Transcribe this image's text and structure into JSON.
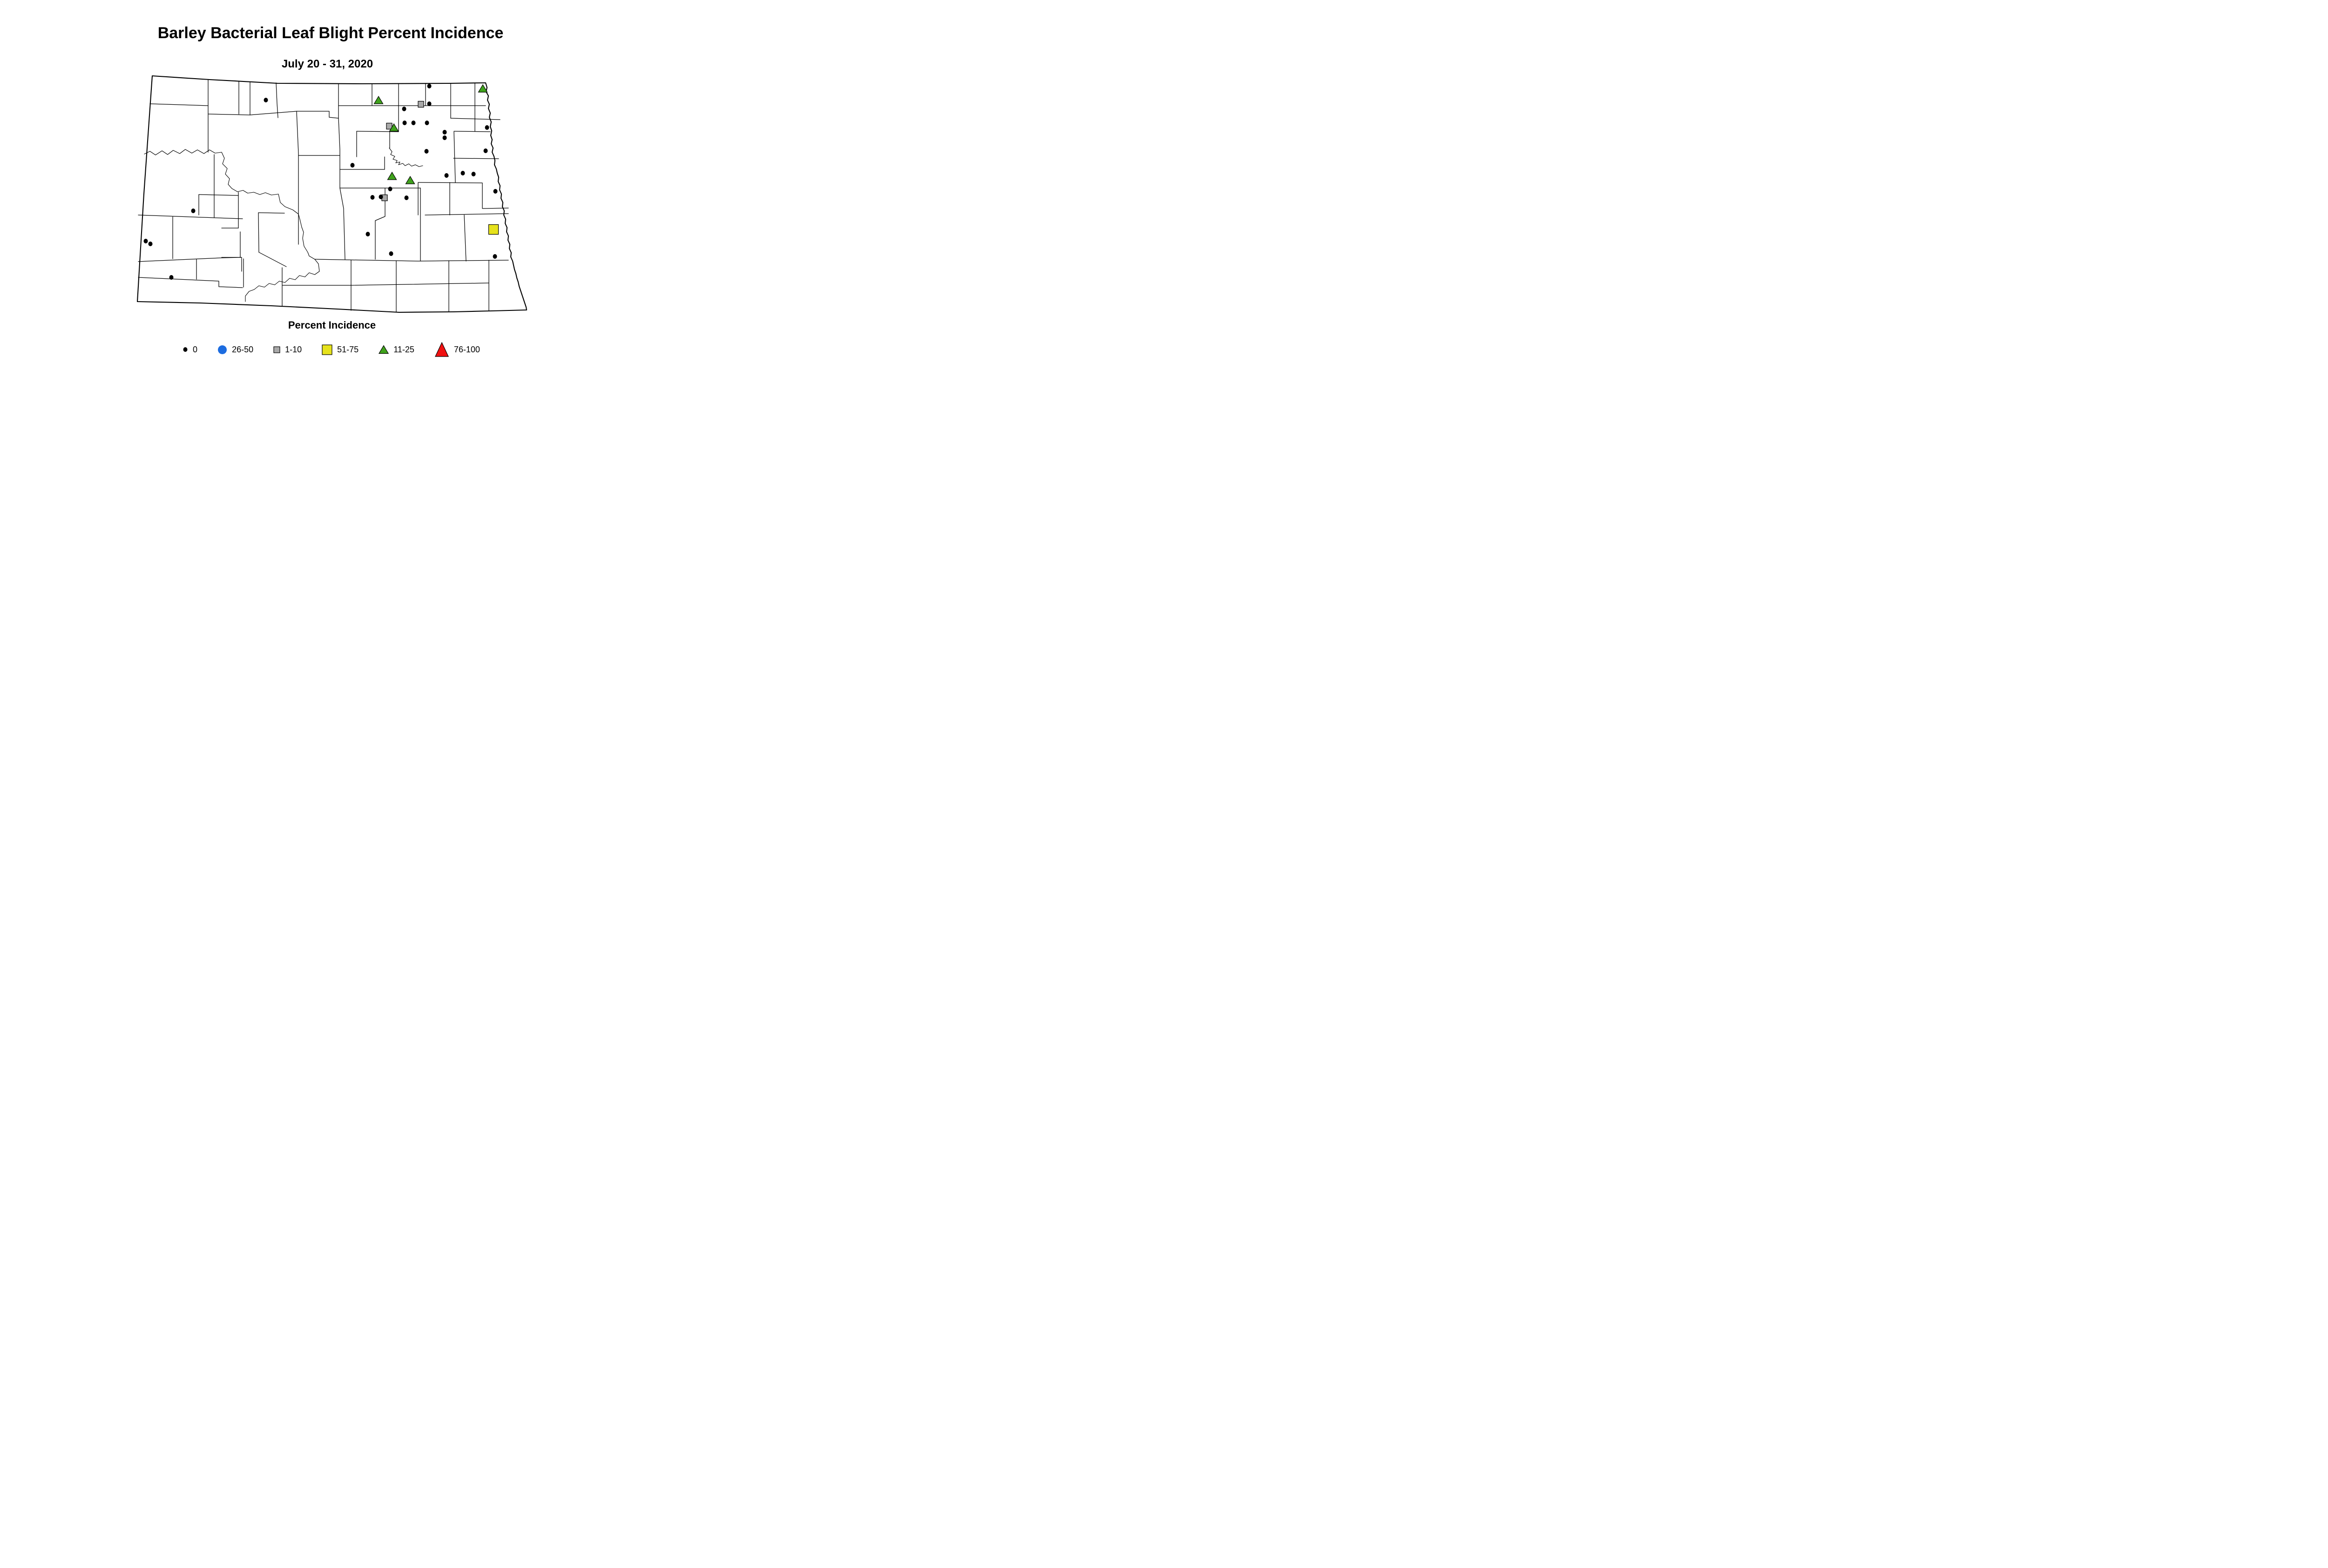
{
  "title": "Barley Bacterial Leaf Blight Percent Incidence",
  "subtitle": "July 20 - 31, 2020",
  "legend": {
    "title": "Percent Incidence",
    "items": [
      {
        "label": "0",
        "shape": "dot",
        "color": "#000000",
        "size": [
          9,
          10
        ]
      },
      {
        "label": "26-50",
        "shape": "circle",
        "color": "#1c6ce0",
        "size": [
          19,
          19
        ]
      },
      {
        "label": "1-10",
        "shape": "square",
        "color": "#a9a9a9",
        "size": [
          13,
          13
        ]
      },
      {
        "label": "51-75",
        "shape": "square",
        "color": "#e6e21c",
        "size": [
          21,
          21
        ]
      },
      {
        "label": "11-25",
        "shape": "triangle",
        "color": "#3fa21c",
        "size": [
          20,
          17
        ]
      },
      {
        "label": "76-100",
        "shape": "triangle",
        "color": "#f01111",
        "size": [
          28,
          30
        ]
      }
    ]
  },
  "map": {
    "marker_series": [
      {
        "category": "1-10",
        "shape": "square",
        "color": "#a9a9a9",
        "size": [
          12,
          13
        ],
        "points": [
          [
            904,
            224
          ],
          [
            836,
            271
          ],
          [
            826,
            425
          ]
        ]
      },
      {
        "category": "11-25",
        "shape": "triangle",
        "color": "#3fa21c",
        "size": [
          19,
          16
        ],
        "points": [
          [
            813,
            215
          ],
          [
            1037,
            190
          ],
          [
            846,
            274
          ],
          [
            842,
            378
          ],
          [
            881,
            387
          ]
        ]
      },
      {
        "category": "26-50",
        "shape": "circle",
        "color": "#1c6ce0",
        "size": [
          19,
          19
        ],
        "points": []
      },
      {
        "category": "51-75",
        "shape": "square",
        "color": "#e6e21c",
        "size": [
          21,
          21
        ],
        "points": [
          [
            1060,
            493
          ]
        ]
      },
      {
        "category": "76-100",
        "shape": "triangle",
        "color": "#f01111",
        "size": [
          28,
          30
        ],
        "points": []
      },
      {
        "category": "0",
        "shape": "dot",
        "color": "#000000",
        "size": [
          9,
          10
        ],
        "points": [
          [
            571,
            215
          ],
          [
            922,
            185
          ],
          [
            922,
            223
          ],
          [
            868,
            234
          ],
          [
            869,
            264
          ],
          [
            888,
            264
          ],
          [
            917,
            264
          ],
          [
            1046,
            274
          ],
          [
            955,
            284
          ],
          [
            955,
            296
          ],
          [
            916,
            325
          ],
          [
            1043,
            324
          ],
          [
            757,
            355
          ],
          [
            994,
            372
          ],
          [
            1017,
            374
          ],
          [
            959,
            377
          ],
          [
            838,
            406
          ],
          [
            1064,
            411
          ],
          [
            818,
            423
          ],
          [
            800,
            424
          ],
          [
            873,
            425
          ],
          [
            415,
            453
          ],
          [
            790,
            503
          ],
          [
            313,
            518
          ],
          [
            323,
            524
          ],
          [
            840,
            545
          ],
          [
            1063,
            551
          ],
          [
            368,
            596
          ]
        ]
      }
    ]
  }
}
